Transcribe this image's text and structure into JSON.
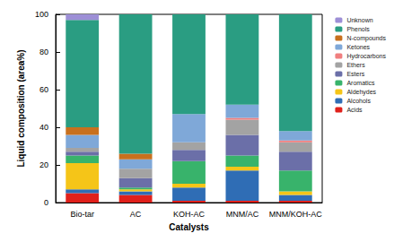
{
  "chart_data": {
    "type": "bar",
    "stacked": true,
    "legend": "right",
    "grid": false,
    "x_label": "Catalysts",
    "y_label": "Liquid composition (area%)",
    "categories": [
      "Bio-tar",
      "AC",
      "KOH-AC",
      "MNM/AC",
      "MNM/KOH-AC"
    ],
    "ylim": [
      0,
      100
    ],
    "yticks": [
      0,
      20,
      40,
      60,
      80,
      100
    ],
    "series": [
      {
        "name": "Unknown",
        "color": "#9d8fd6",
        "values": [
          3,
          0,
          0,
          0,
          0
        ]
      },
      {
        "name": "Phenols",
        "color": "#2a9d82",
        "values": [
          57,
          74,
          53,
          48,
          62
        ]
      },
      {
        "name": "N-compounds",
        "color": "#c8701e",
        "values": [
          4,
          3,
          0,
          0,
          0
        ]
      },
      {
        "name": "Ketones",
        "color": "#7fa8d8",
        "values": [
          7,
          5,
          15,
          7,
          5
        ]
      },
      {
        "name": "Hydrocarbons",
        "color": "#f07f7f",
        "values": [
          0,
          0,
          0,
          1,
          1
        ]
      },
      {
        "name": "Ethers",
        "color": "#a3a3a3",
        "values": [
          2,
          5,
          4,
          8,
          5
        ]
      },
      {
        "name": "Esters",
        "color": "#6b6fa8",
        "values": [
          2,
          5,
          6,
          11,
          10
        ]
      },
      {
        "name": "Aromatics",
        "color": "#38b36b",
        "values": [
          4,
          1,
          12,
          6,
          11
        ]
      },
      {
        "name": "Aldehydes",
        "color": "#f5c518",
        "values": [
          14,
          1,
          2,
          2,
          2
        ]
      },
      {
        "name": "Alcohols",
        "color": "#2f6db5",
        "values": [
          2,
          2,
          7,
          16,
          3
        ]
      },
      {
        "name": "Acids",
        "color": "#e0201b",
        "values": [
          5,
          4,
          1,
          1,
          1
        ]
      }
    ]
  }
}
